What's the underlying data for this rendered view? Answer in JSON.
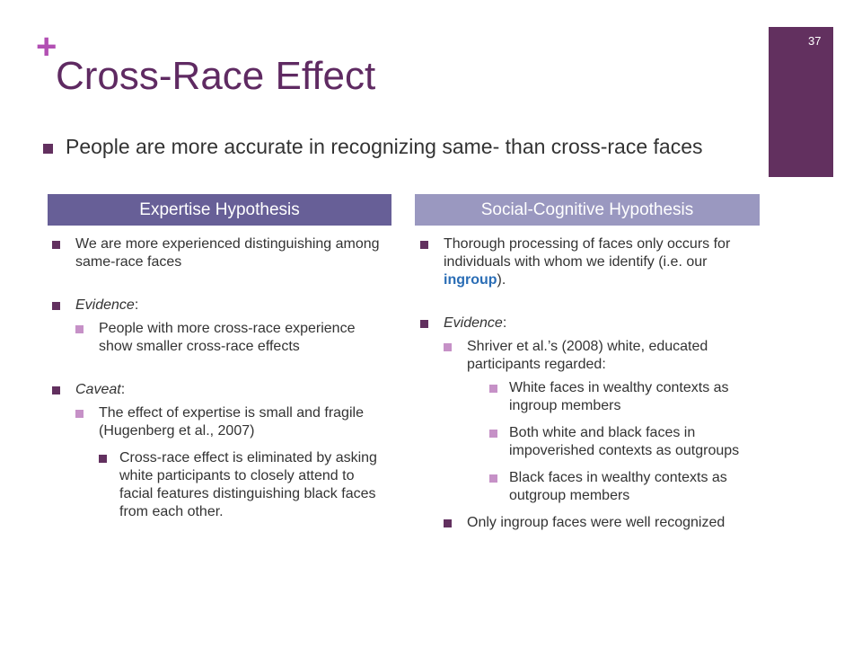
{
  "slide": {
    "number": "37",
    "plus": "+",
    "title": "Cross-Race Effect",
    "main_bullet": "People are more accurate in recognizing same- than cross-race faces"
  },
  "colors": {
    "title": "#5f2a62",
    "accent_bar": "#62305f",
    "plus": "#b24fb3",
    "header_left": "#675f97",
    "header_right": "#9a98c0",
    "highlight": "#2a6db5"
  },
  "left_column": {
    "header": "Expertise Hypothesis",
    "point1": "We are more experienced distinguishing among same-race faces",
    "evidence_label": "Evidence",
    "evidence_colon": ":",
    "evidence1": "People with more cross-race experience show smaller cross-race effects",
    "caveat_label": "Caveat",
    "caveat_colon": ":",
    "caveat1": "The effect of expertise is small and fragile (Hugenberg et al., 2007)",
    "caveat1a": "Cross-race effect is eliminated by asking white participants to closely attend to facial features distinguishing black faces from each other."
  },
  "right_column": {
    "header": "Social-Cognitive Hypothesis",
    "point1_pre": "Thorough processing of faces only occurs for individuals with whom we identify (i.e. our ",
    "point1_highlight": "ingroup",
    "point1_post": ").",
    "evidence_label": "Evidence",
    "evidence_colon": ":",
    "evidence1": "Shriver et al.’s (2008) white, educated participants regarded:",
    "evidence1a": "White faces in wealthy contexts as ingroup members",
    "evidence1b": "Both white and black faces in impoverished contexts as outgroups",
    "evidence1c": "Black faces in wealthy contexts as outgroup members",
    "evidence2": "Only ingroup faces were well recognized"
  }
}
